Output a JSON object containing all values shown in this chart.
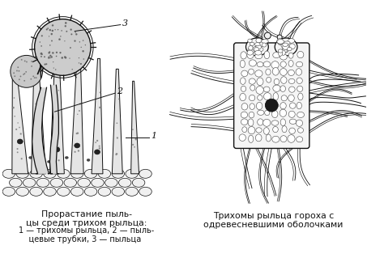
{
  "bg_color": "#ffffff",
  "text_color": "#000000",
  "caption_left_title": "Прорастание пыль-\nцы среди трихом рыльца:",
  "caption_left_sub": "1 — трихомы рыльца, 2 — пыль-\n    цевые трубки, 3 — пыльца",
  "caption_right_title": "Трихомы рыльца гороха с\nодревесневшими оболочками",
  "label1": "1",
  "label2": "2",
  "label3": "3",
  "line_color": "#111111",
  "trichome_face": "#e0e0e0",
  "pollen_face": "#c8c8c8",
  "cell_face": "#ffffff",
  "cell_edge": "#333333"
}
